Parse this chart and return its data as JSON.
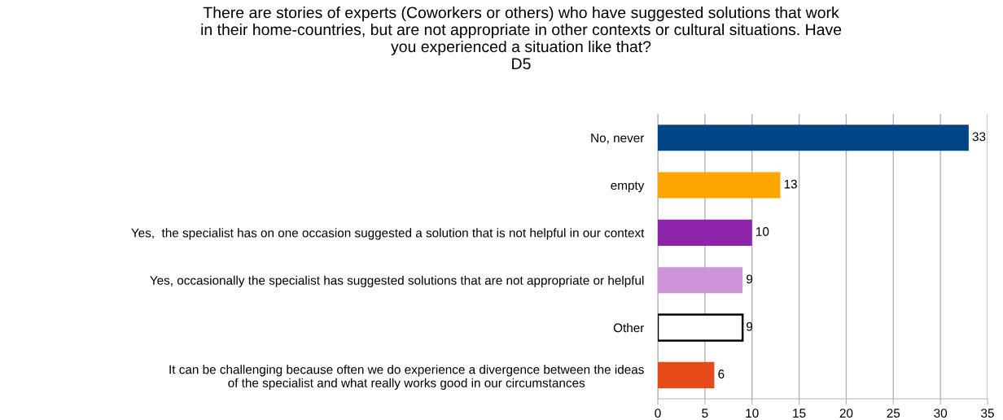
{
  "chart_data": {
    "type": "bar",
    "orientation": "horizontal",
    "title": "There are stories of experts (Coworkers or others) who have suggested solutions that work\nin their home-countries, but are not appropriate in other contexts or cultural situations. Have\nyou experienced a situation like that?\nD5",
    "categories": [
      "No, never",
      "empty",
      "Yes,  the specialist has on one occasion suggested a solution that is not helpful in our context",
      "Yes, occasionally the specialist has suggested solutions that are not appropriate or helpful",
      "Other",
      "It can be challenging because often we do experience a divergence between the ideas\nof the specialist and what really works good in our circumstances"
    ],
    "values": [
      33,
      13,
      10,
      9,
      9,
      6
    ],
    "colors": [
      "#004586",
      "#ffa500",
      "#8e24aa",
      "#ce93d8",
      "#ffffff",
      "#e64a19"
    ],
    "xlim": [
      0,
      35
    ],
    "xticks": [
      0,
      5,
      10,
      15,
      20,
      25,
      30,
      35
    ],
    "grid": "x",
    "data_labels": true
  }
}
